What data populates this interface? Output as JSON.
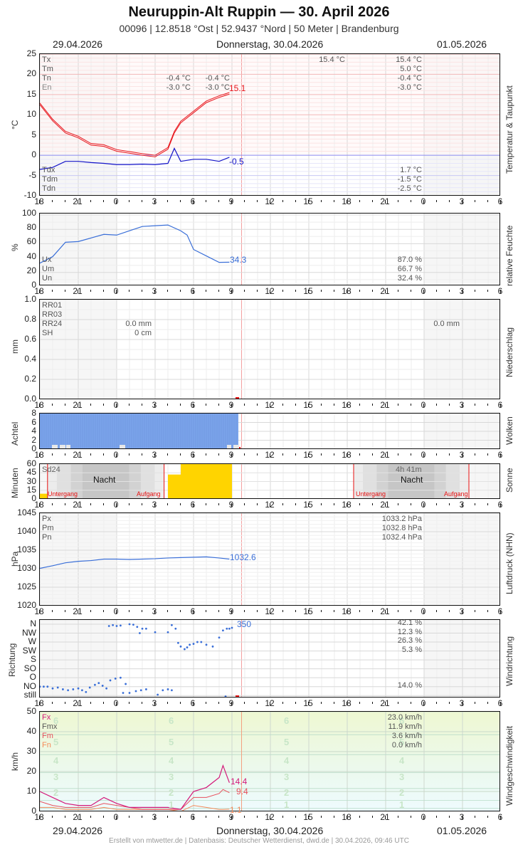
{
  "header": {
    "title": "Neuruppin-Alt Ruppin  —  30. April 2026",
    "subtitle": "00096  |  12.8518 °Ost  |  52.9437 °Nord  |  50 Meter  |  Brandenburg",
    "date_left": "29.04.2026",
    "date_center": "Donnerstag, 30.04.2026",
    "date_right": "01.05.2026"
  },
  "x_ticks": [
    "18",
    "21",
    "0",
    "3",
    "6",
    "9",
    "12",
    "15",
    "18",
    "21",
    "0",
    "3",
    "6"
  ],
  "footer": "Erstellt von mtwetter.de | Datenbasis: Deutscher Wetterdienst, dwd.de | 30.04.2026, 09:46 UTC",
  "colors": {
    "temp": "#e8141b",
    "dew": "#1414c8",
    "humidity": "#3a6fd8",
    "cloud": "#7aa3ea",
    "sun": "#ffd400",
    "now_line": "#f4a0a0",
    "fx": "#d4197a",
    "fm": "#e8505e",
    "fn": "#f58a5a"
  },
  "chart_data": [
    {
      "type": "line",
      "title": "Temperatur & Taupunkt",
      "ylabel": "°C",
      "ylim": [
        -10,
        25
      ],
      "yticks": [
        "25",
        "20",
        "15",
        "10",
        "5",
        "0",
        "-5",
        "-10"
      ],
      "x_hours_from_18": [
        0,
        1,
        2,
        3,
        4,
        5,
        6,
        7,
        8,
        9,
        10,
        10.5,
        11,
        12,
        13,
        14,
        14.8
      ],
      "series": [
        {
          "name": "T",
          "values": [
            12.5,
            8.5,
            5.5,
            4.3,
            2.5,
            2.2,
            1.0,
            0.5,
            0.0,
            -0.4,
            1.5,
            5.5,
            8.0,
            10.5,
            13.0,
            14.3,
            15.1
          ]
        },
        {
          "name": "Td",
          "values": [
            -3.5,
            -3.0,
            -1.5,
            -1.5,
            -1.8,
            -2.0,
            -2.3,
            -2.3,
            -2.2,
            -2.3,
            -2.0,
            1.7,
            -1.5,
            -1.0,
            -1.0,
            -1.5,
            -0.5
          ]
        }
      ],
      "end_labels": {
        "T": "15.1",
        "Td": "-0.5"
      },
      "legend": {
        "top": [
          "Tx",
          "Tm",
          "Tn",
          "En"
        ],
        "bottom": [
          "Tdx",
          "Tdm",
          "Tdn"
        ]
      },
      "stats_day1": {
        "Tn": "-0.4 °C",
        "En": "-3.0 °C"
      },
      "stats_day1b": {
        "Tn": "-0.4 °C",
        "En": "-3.0 °C"
      },
      "stats_mid": {
        "Tx": "15.4 °C"
      },
      "stats_day2": {
        "Tx": "15.4 °C",
        "Tm": "5.0 °C",
        "Tn": "-0.4 °C",
        "En": "-3.0 °C",
        "Tdx": "1.7 °C",
        "Tdm": "-1.5 °C",
        "Tdn": "-2.5 °C"
      }
    },
    {
      "type": "line",
      "title": "relative Feuchte",
      "ylabel": "%",
      "ylim": [
        0,
        100
      ],
      "yticks": [
        "100",
        "80",
        "60",
        "40",
        "20",
        "0"
      ],
      "x_hours_from_18": [
        0,
        1,
        2,
        3,
        4,
        5,
        6,
        7,
        8,
        9,
        10,
        11,
        11.5,
        12,
        13,
        14,
        14.8
      ],
      "series": [
        {
          "name": "U",
          "values": [
            33,
            42,
            62,
            63,
            68,
            73,
            72,
            78,
            84,
            85,
            86,
            78,
            72,
            52,
            43,
            34,
            34.3
          ]
        }
      ],
      "end_labels": {
        "U": "34.3"
      },
      "legend": [
        "Ux",
        "Um",
        "Un"
      ],
      "stats": {
        "Ux": "87.0 %",
        "Um": "66.7 %",
        "Un": "32.4 %"
      }
    },
    {
      "type": "bar",
      "title": "Niederschlag",
      "ylabel": "mm",
      "ylim": [
        0,
        1.0
      ],
      "yticks": [
        "1.0",
        "0.8",
        "0.6",
        "0.4",
        "0.2",
        "0.0"
      ],
      "values_mm": [
        0
      ],
      "legend": [
        "RR01",
        "RR03",
        "RR24",
        "SH"
      ],
      "stats_day1": {
        "RR24": "0.0 mm",
        "SH": "0 cm"
      },
      "stats_day2": {
        "RR24": "0.0 mm"
      }
    },
    {
      "type": "bar",
      "title": "Wolken",
      "ylabel": "Achtel",
      "ylim": [
        0,
        8
      ],
      "yticks": [
        "8",
        "6",
        "4",
        "2",
        "0"
      ],
      "coverage_until_hour_from_18": 15.5,
      "value": 8
    },
    {
      "type": "bar",
      "title": "Sonne",
      "ylabel": "Minuten",
      "ylim": [
        0,
        60
      ],
      "yticks": [
        "60",
        "45",
        "30",
        "15",
        "0"
      ],
      "bars": [
        {
          "start": 0,
          "end": 0.6,
          "minutes": 9
        },
        {
          "start": 10,
          "end": 11,
          "minutes": 42
        },
        {
          "start": 11,
          "end": 15,
          "minutes": 60
        }
      ],
      "labels": {
        "sd24": "Sd24",
        "night": "Nacht",
        "sunset": "Untergang",
        "sunrise": "Aufgang",
        "duration_day2": "4h 41m"
      }
    },
    {
      "type": "line",
      "title": "Luftdruck (NHN)",
      "ylabel": "hPa",
      "ylim": [
        1020,
        1045
      ],
      "yticks": [
        "1045",
        "1040",
        "1035",
        "1030",
        "1025",
        "1020"
      ],
      "x_hours_from_18": [
        0,
        1,
        2,
        3,
        4,
        5,
        6,
        7,
        8,
        9,
        10,
        11,
        12,
        13,
        14,
        14.8
      ],
      "series": [
        {
          "name": "P",
          "values": [
            1030.1,
            1030.8,
            1031.6,
            1032.0,
            1032.2,
            1032.6,
            1032.6,
            1032.5,
            1032.6,
            1032.7,
            1032.9,
            1033.0,
            1033.1,
            1033.2,
            1032.9,
            1032.6
          ]
        }
      ],
      "end_labels": {
        "P": "1032.6"
      },
      "legend": [
        "Px",
        "Pm",
        "Pn"
      ],
      "stats": {
        "Px": "1033.2 hPa",
        "Pm": "1032.8 hPa",
        "Pn": "1032.4 hPa"
      }
    },
    {
      "type": "scatter",
      "title": "Windrichtung",
      "ylabel": "Richtung",
      "yticks": [
        "N",
        "NW",
        "W",
        "SW",
        "S",
        "SO",
        "O",
        "NO",
        "still"
      ],
      "end_label": "350",
      "stats": {
        "N": "42.1 %",
        "NW": "12.3 %",
        "W": "26.3 %",
        "SW": "5.3 %",
        "NO": "14.0 %"
      }
    },
    {
      "type": "line",
      "title": "Windgeschwindigkeit",
      "ylabel": "km/h",
      "ylim": [
        0,
        50
      ],
      "yticks": [
        "50",
        "40",
        "30",
        "20",
        "10",
        "0"
      ],
      "beaufort": [
        "6",
        "5",
        "4",
        "3",
        "2",
        "1"
      ],
      "x_hours_from_18": [
        0,
        1,
        2,
        3,
        4,
        5,
        6,
        7,
        8,
        9,
        10,
        11,
        12,
        13,
        14,
        14.3,
        14.8
      ],
      "series": [
        {
          "name": "Fx",
          "values": [
            10,
            7,
            4,
            3,
            3,
            7,
            4,
            2,
            2,
            2,
            2,
            1,
            10,
            12,
            17,
            23,
            14.4
          ]
        },
        {
          "name": "Fm",
          "values": [
            5,
            3,
            2,
            2,
            2,
            4,
            3,
            2,
            1,
            1,
            1,
            1,
            7,
            7,
            9,
            11,
            9.4
          ]
        },
        {
          "name": "Fn",
          "values": [
            2,
            2,
            1,
            1,
            1,
            2,
            1,
            1,
            1,
            1,
            1,
            0,
            3,
            2,
            1,
            1,
            1.1
          ]
        }
      ],
      "end_labels": {
        "Fx": "14.4",
        "Fm": "9.4",
        "Fn": "1.1"
      },
      "legend": [
        "Fx",
        "Fmx",
        "Fm",
        "Fn"
      ],
      "stats": {
        "Fx": "23.0 km/h",
        "Fmx": "11.9 km/h",
        "Fm": "3.6 km/h",
        "Fn": "0.0 km/h"
      }
    }
  ]
}
